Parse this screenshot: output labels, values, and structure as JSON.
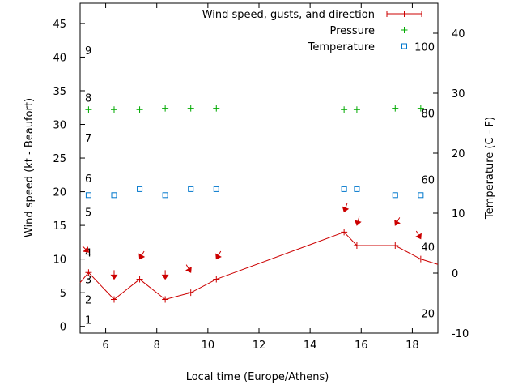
{
  "chart_data": {
    "type": "line",
    "xlabel": "Local time (Europe/Athens)",
    "ylabel": "Wind speed (kt - Beaufort)",
    "y2label": "Temperature (C - F)",
    "xlim": [
      5.0,
      19.0
    ],
    "ylim": [
      -1,
      48
    ],
    "y2lim": [
      -10,
      45
    ],
    "x_ticks": [
      6,
      8,
      10,
      12,
      14,
      16,
      18
    ],
    "y_ticks": [
      0,
      5,
      10,
      15,
      20,
      25,
      30,
      35,
      40,
      45
    ],
    "y2_ticks": [
      -10,
      0,
      10,
      20,
      30,
      40
    ],
    "beaufort_labels": [
      {
        "text": "1",
        "y": 1
      },
      {
        "text": "2",
        "y": 4
      },
      {
        "text": "3",
        "y": 7
      },
      {
        "text": "4",
        "y": 11
      },
      {
        "text": "5",
        "y": 17
      },
      {
        "text": "6",
        "y": 22
      },
      {
        "text": "7",
        "y": 28
      },
      {
        "text": "8",
        "y": 34
      },
      {
        "text": "9",
        "y": 41
      }
    ],
    "fahrenheit_labels": [
      {
        "text": "20",
        "y2": -6.7
      },
      {
        "text": "40",
        "y2": 4.4
      },
      {
        "text": "60",
        "y2": 15.6
      },
      {
        "text": "80",
        "y2": 26.7
      },
      {
        "text": "100",
        "y2": 37.8
      }
    ],
    "legend_position": "top-right",
    "series": [
      {
        "name": "Wind speed, gusts, and direction",
        "color": "#cc0000",
        "x": [
          5.33,
          6.33,
          7.33,
          8.33,
          9.33,
          10.33,
          15.33,
          15.83,
          17.33,
          18.33
        ],
        "values": [
          8,
          4,
          7,
          4,
          5,
          7,
          14,
          12,
          12,
          10
        ],
        "line_extends": [
          [
            5.0,
            6.5
          ],
          [
            19.0,
            9.2
          ]
        ],
        "direction_arrows": [
          {
            "x": 5.33,
            "y": 11.5,
            "from_deg": 315
          },
          {
            "x": 6.33,
            "y": 7.5,
            "from_deg": 0
          },
          {
            "x": 7.33,
            "y": 10.5,
            "from_deg": 30
          },
          {
            "x": 8.33,
            "y": 7.5,
            "from_deg": 0
          },
          {
            "x": 9.33,
            "y": 8.5,
            "from_deg": 330
          },
          {
            "x": 10.33,
            "y": 10.5,
            "from_deg": 30
          },
          {
            "x": 15.33,
            "y": 17.5,
            "from_deg": 20
          },
          {
            "x": 15.83,
            "y": 15.5,
            "from_deg": 15
          },
          {
            "x": 17.33,
            "y": 15.5,
            "from_deg": 30
          },
          {
            "x": 18.33,
            "y": 13.5,
            "from_deg": 330
          }
        ]
      },
      {
        "name": "Pressure",
        "color": "#00aa00",
        "marker": "plus",
        "x": [
          5.33,
          6.33,
          7.33,
          8.33,
          9.33,
          10.33,
          15.33,
          15.83,
          17.33,
          18.33
        ],
        "values": [
          32.2,
          32.2,
          32.2,
          32.4,
          32.4,
          32.4,
          32.2,
          32.2,
          32.4,
          32.4
        ]
      },
      {
        "name": "Temperature",
        "color": "#0077cc",
        "marker": "square",
        "axis": "y2",
        "x": [
          5.33,
          6.33,
          7.33,
          8.33,
          9.33,
          10.33,
          15.33,
          15.83,
          17.33,
          18.33
        ],
        "values": [
          13,
          13,
          14,
          13,
          14,
          14,
          14,
          14,
          13,
          13
        ]
      }
    ]
  }
}
